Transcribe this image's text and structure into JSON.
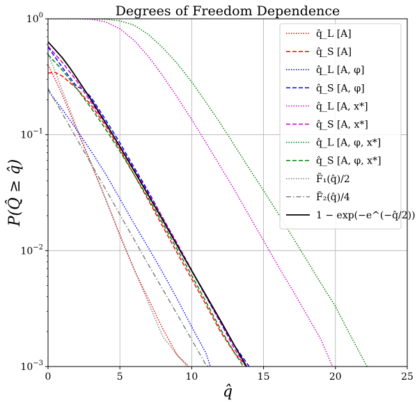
{
  "chart_data": {
    "type": "line",
    "title": "Degrees of Freedom Dependence",
    "xlabel": "q̂",
    "ylabel": "P(Q̂ ≥ q̂)",
    "xlim": [
      0,
      25
    ],
    "ylim": [
      0.001,
      1
    ],
    "yscale": "log",
    "grid": true,
    "legend_position": "upper right",
    "x_ticks": [
      "0",
      "5",
      "10",
      "15",
      "20",
      "25"
    ],
    "y_ticks": [
      {
        "value": 1,
        "label": "10⁰"
      },
      {
        "value": 0.1,
        "label": "10⁻¹"
      },
      {
        "value": 0.01,
        "label": "10⁻²"
      },
      {
        "value": 0.001,
        "label": "10⁻³"
      }
    ],
    "series": [
      {
        "name": "q̂_L [A]",
        "color": "#ff0000",
        "style": "dotted",
        "x": [
          0,
          0.5,
          1,
          2,
          3,
          4,
          5,
          6,
          7,
          8,
          9,
          9.8
        ],
        "y": [
          0.4,
          0.3,
          0.22,
          0.11,
          0.056,
          0.028,
          0.0135,
          0.0068,
          0.0038,
          0.0021,
          0.00125,
          0.001
        ]
      },
      {
        "name": "q̂_S [A]",
        "color": "#ff0000",
        "style": "dashed",
        "x": [
          0,
          0.5,
          1,
          2,
          3,
          4,
          5,
          6,
          7,
          8,
          9,
          10,
          11,
          12,
          13,
          13.8
        ],
        "y": [
          0.34,
          0.345,
          0.32,
          0.25,
          0.18,
          0.12,
          0.075,
          0.045,
          0.027,
          0.016,
          0.0095,
          0.0057,
          0.0034,
          0.002,
          0.0013,
          0.001
        ]
      },
      {
        "name": "q̂_L [A, φ]",
        "color": "#0000ff",
        "style": "dotted",
        "x": [
          0,
          1,
          2,
          3,
          4,
          5,
          6,
          7,
          8,
          9,
          10,
          11,
          11.3
        ],
        "y": [
          0.24,
          0.165,
          0.11,
          0.072,
          0.046,
          0.028,
          0.017,
          0.0105,
          0.0064,
          0.0038,
          0.0022,
          0.0013,
          0.001
        ]
      },
      {
        "name": "q̂_S [A, φ]",
        "color": "#0000ff",
        "style": "dashed",
        "x": [
          0,
          1,
          2,
          2.5,
          3,
          4,
          5,
          6,
          7,
          8,
          9,
          10,
          11,
          12,
          13,
          14
        ],
        "y": [
          0.57,
          0.38,
          0.26,
          0.245,
          0.21,
          0.135,
          0.085,
          0.052,
          0.032,
          0.019,
          0.0113,
          0.0067,
          0.004,
          0.0024,
          0.0015,
          0.001
        ]
      },
      {
        "name": "q̂_L [A, x*]",
        "color": "#cc00cc",
        "style": "dotted",
        "x": [
          0,
          2,
          3,
          4,
          5,
          6,
          7,
          8,
          9,
          10,
          11,
          12,
          13,
          14,
          15,
          16,
          17,
          18,
          19,
          19.8
        ],
        "y": [
          1,
          1,
          0.99,
          0.94,
          0.82,
          0.65,
          0.47,
          0.32,
          0.21,
          0.135,
          0.085,
          0.053,
          0.033,
          0.02,
          0.0122,
          0.0074,
          0.0046,
          0.0028,
          0.0017,
          0.001
        ]
      },
      {
        "name": "q̂_S [A, x*]",
        "color": "#cc00cc",
        "style": "dashed",
        "x": [
          0,
          1,
          2,
          3,
          4,
          5,
          6,
          7,
          8,
          9,
          10,
          11,
          12,
          13,
          13.8
        ],
        "y": [
          0.58,
          0.42,
          0.29,
          0.19,
          0.125,
          0.08,
          0.05,
          0.031,
          0.019,
          0.0115,
          0.0068,
          0.004,
          0.0024,
          0.0014,
          0.001
        ]
      },
      {
        "name": "q̂_L [A, φ, x*]",
        "color": "#008000",
        "style": "dotted",
        "x": [
          0,
          2,
          3,
          4,
          5,
          6,
          7,
          8,
          9,
          10,
          11,
          12,
          13,
          14,
          15,
          16,
          17,
          18,
          19,
          20,
          21,
          22.2
        ],
        "y": [
          1,
          1,
          1,
          0.99,
          0.96,
          0.88,
          0.73,
          0.56,
          0.41,
          0.285,
          0.19,
          0.125,
          0.08,
          0.051,
          0.033,
          0.021,
          0.0132,
          0.0083,
          0.0052,
          0.0033,
          0.0019,
          0.001
        ]
      },
      {
        "name": "q̂_S [A, φ, x*]",
        "color": "#008000",
        "style": "dashed",
        "x": [
          0,
          1,
          2,
          3,
          4,
          5,
          6,
          7,
          8,
          9,
          10,
          11,
          12,
          13,
          13.6
        ],
        "y": [
          0.49,
          0.36,
          0.25,
          0.17,
          0.112,
          0.072,
          0.045,
          0.028,
          0.017,
          0.0102,
          0.0061,
          0.0036,
          0.0021,
          0.0013,
          0.001
        ]
      },
      {
        "name": "F̃₁(q̂)/2",
        "color": "#7f7f7f",
        "style": "dotted",
        "x": [
          0,
          0.5,
          1,
          2,
          3,
          4,
          5,
          6,
          7,
          8,
          9,
          9.7
        ],
        "y": [
          0.5,
          0.35,
          0.24,
          0.115,
          0.057,
          0.028,
          0.0138,
          0.0069,
          0.0035,
          0.0018,
          0.00125,
          0.001
        ]
      },
      {
        "name": "F̃₂(q̂)/4",
        "color": "#7f7f7f",
        "style": "dashdot",
        "x": [
          0,
          1,
          2,
          3,
          4,
          5,
          6,
          7,
          8,
          9,
          10,
          11,
          11.2
        ],
        "y": [
          0.25,
          0.152,
          0.092,
          0.056,
          0.034,
          0.0205,
          0.0124,
          0.0075,
          0.0046,
          0.0028,
          0.0017,
          0.00103,
          0.001
        ]
      },
      {
        "name": "1 − exp(−e^(−q̂/2))",
        "color": "#000000",
        "style": "solid",
        "x": [
          0,
          0.5,
          1,
          1.5,
          2,
          3,
          4,
          5,
          6,
          7,
          8,
          9,
          10,
          11,
          12,
          13,
          13.82
        ],
        "y": [
          0.632,
          0.54,
          0.46,
          0.38,
          0.308,
          0.2,
          0.127,
          0.079,
          0.0486,
          0.0298,
          0.0182,
          0.011,
          0.0067,
          0.0041,
          0.0025,
          0.0015,
          0.001
        ]
      }
    ]
  }
}
